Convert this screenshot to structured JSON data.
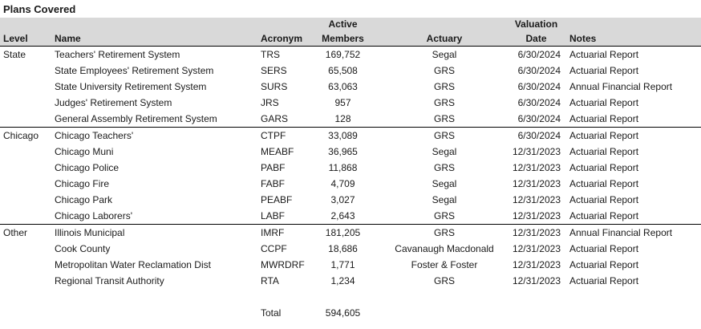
{
  "title": "Plans Covered",
  "table": {
    "headers": {
      "level": "Level",
      "name": "Name",
      "acronym": "Acronym",
      "members_top": "Active",
      "members_bottom": "Members",
      "actuary": "Actuary",
      "date_top": "Valuation",
      "date_bottom": "Date",
      "notes": "Notes"
    },
    "sections": [
      {
        "level": "State",
        "rows": [
          {
            "name": "Teachers' Retirement System",
            "acronym": "TRS",
            "members": "169,752",
            "actuary": "Segal",
            "date": "6/30/2024",
            "notes": "Actuarial Report"
          },
          {
            "name": "State Employees' Retirement System",
            "acronym": "SERS",
            "members": "65,508",
            "actuary": "GRS",
            "date": "6/30/2024",
            "notes": "Actuarial Report"
          },
          {
            "name": "State University Retirement System",
            "acronym": "SURS",
            "members": "63,063",
            "actuary": "GRS",
            "date": "6/30/2024",
            "notes": "Annual Financial Report"
          },
          {
            "name": "Judges' Retirement System",
            "acronym": "JRS",
            "members": "957",
            "actuary": "GRS",
            "date": "6/30/2024",
            "notes": "Actuarial Report"
          },
          {
            "name": "General Assembly Retirement System",
            "acronym": "GARS",
            "members": "128",
            "actuary": "GRS",
            "date": "6/30/2024",
            "notes": "Actuarial Report"
          }
        ]
      },
      {
        "level": "Chicago",
        "rows": [
          {
            "name": "Chicago Teachers'",
            "acronym": "CTPF",
            "members": "33,089",
            "actuary": "GRS",
            "date": "6/30/2024",
            "notes": "Actuarial Report"
          },
          {
            "name": "Chicago Muni",
            "acronym": "MEABF",
            "members": "36,965",
            "actuary": "Segal",
            "date": "12/31/2023",
            "notes": "Actuarial Report"
          },
          {
            "name": "Chicago Police",
            "acronym": "PABF",
            "members": "11,868",
            "actuary": "GRS",
            "date": "12/31/2023",
            "notes": "Actuarial Report"
          },
          {
            "name": "Chicago Fire",
            "acronym": "FABF",
            "members": "4,709",
            "actuary": "Segal",
            "date": "12/31/2023",
            "notes": "Actuarial Report"
          },
          {
            "name": "Chicago Park",
            "acronym": "PEABF",
            "members": "3,027",
            "actuary": "Segal",
            "date": "12/31/2023",
            "notes": "Actuarial Report"
          },
          {
            "name": "Chicago Laborers'",
            "acronym": "LABF",
            "members": "2,643",
            "actuary": "GRS",
            "date": "12/31/2023",
            "notes": "Actuarial Report"
          }
        ]
      },
      {
        "level": "Other",
        "rows": [
          {
            "name": "Illinois Municipal",
            "acronym": "IMRF",
            "members": "181,205",
            "actuary": "GRS",
            "date": "12/31/2023",
            "notes": "Annual Financial Report"
          },
          {
            "name": "Cook County",
            "acronym": "CCPF",
            "members": "18,686",
            "actuary": "Cavanaugh Macdonald",
            "date": "12/31/2023",
            "notes": "Actuarial Report"
          },
          {
            "name": "Metropolitan Water Reclamation Dist",
            "acronym": "MWRDRF",
            "members": "1,771",
            "actuary": "Foster & Foster",
            "date": "12/31/2023",
            "notes": "Actuarial Report"
          },
          {
            "name": "Regional Transit Authority",
            "acronym": "RTA",
            "members": "1,234",
            "actuary": "GRS",
            "date": "12/31/2023",
            "notes": "Actuarial Report"
          }
        ]
      }
    ],
    "total": {
      "label": "Total",
      "members": "594,605"
    }
  },
  "colors": {
    "header_bg": "#d9d9d9",
    "text": "#1a1a1a",
    "border": "#000000"
  }
}
